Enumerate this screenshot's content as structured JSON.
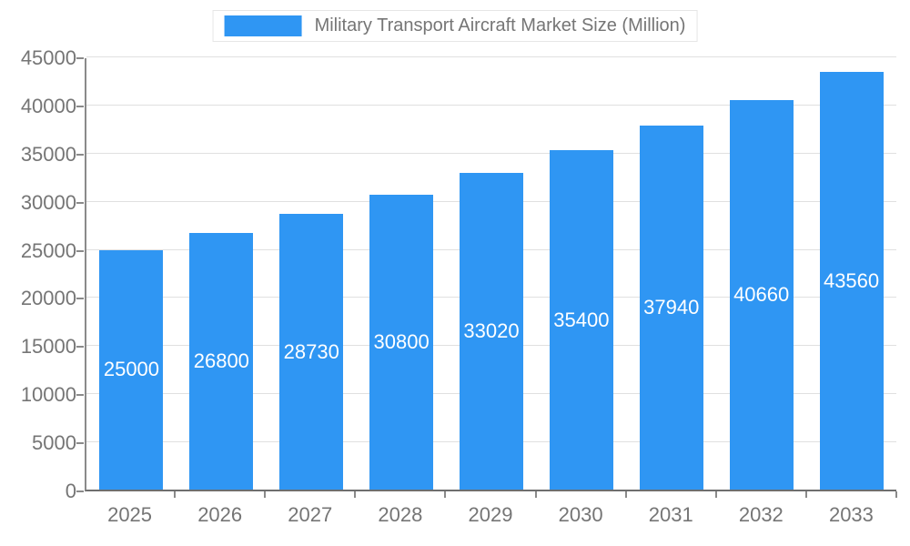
{
  "legend": {
    "label": "Military Transport Aircraft Market Size (Million)"
  },
  "chart_data": {
    "type": "bar",
    "title": "Military Transport Aircraft Market Size (Million)",
    "categories": [
      "2025",
      "2026",
      "2027",
      "2028",
      "2029",
      "2030",
      "2031",
      "2032",
      "2033"
    ],
    "values": [
      25000,
      26800,
      28730,
      30800,
      33020,
      35400,
      37940,
      40660,
      43560
    ],
    "xlabel": "",
    "ylabel": "",
    "ylim": [
      0,
      45000
    ],
    "ytick_step": 5000,
    "grid": true,
    "legend_position": "top",
    "bar_color": "#2f96f3",
    "label_color": "#ffffff",
    "axis_text_color": "#757575",
    "gridline_color": "#e0e0e0"
  }
}
